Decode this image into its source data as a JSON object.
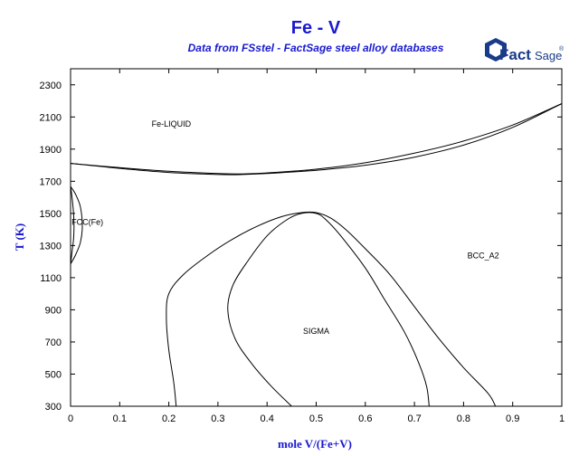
{
  "chart_data": {
    "type": "line",
    "title": "Fe - V",
    "subtitle": "Data from FSstel - FactSage steel alloy databases",
    "xlabel": "mole V/(Fe+V)",
    "ylabel": "T (K)",
    "xlim": [
      0,
      1
    ],
    "ylim": [
      300,
      2400
    ],
    "xticks": [
      "0",
      "0.1",
      "0.2",
      "0.3",
      "0.4",
      "0.5",
      "0.6",
      "0.7",
      "0.8",
      "0.9",
      "1"
    ],
    "xtick_values": [
      0,
      0.1,
      0.2,
      0.3,
      0.4,
      0.5,
      0.6,
      0.7,
      0.8,
      0.9,
      1
    ],
    "yticks": [
      "300",
      "500",
      "700",
      "900",
      "1100",
      "1300",
      "1500",
      "1700",
      "1900",
      "2100",
      "2300"
    ],
    "ytick_values": [
      300,
      500,
      700,
      900,
      1100,
      1300,
      1500,
      1700,
      1900,
      2100,
      2300
    ],
    "grid": false,
    "region_labels": [
      {
        "text": "Fe-LIQUID",
        "x": 0.165,
        "y": 2040
      },
      {
        "text": "FCC(Fe)",
        "x": 0.002,
        "y": 1430
      },
      {
        "text": "BCC_A2",
        "x": 0.84,
        "y": 1220
      },
      {
        "text": "SIGMA",
        "x": 0.5,
        "y": 750
      }
    ],
    "series": [
      {
        "values": [
          [
            0,
            1811
          ],
          [
            0.1,
            1785
          ],
          [
            0.2,
            1762
          ],
          [
            0.3,
            1748
          ],
          [
            0.35,
            1746
          ],
          [
            0.4,
            1752
          ],
          [
            0.5,
            1775
          ],
          [
            0.6,
            1815
          ],
          [
            0.7,
            1875
          ],
          [
            0.8,
            1950
          ],
          [
            0.9,
            2050
          ],
          [
            1,
            2183
          ]
        ]
      },
      {
        "values": [
          [
            0,
            1811
          ],
          [
            0.1,
            1780
          ],
          [
            0.2,
            1755
          ],
          [
            0.3,
            1742
          ],
          [
            0.35,
            1742
          ],
          [
            0.4,
            1748
          ],
          [
            0.5,
            1768
          ],
          [
            0.6,
            1800
          ],
          [
            0.7,
            1850
          ],
          [
            0.8,
            1925
          ],
          [
            0.9,
            2035
          ],
          [
            1,
            2183
          ]
        ]
      },
      {
        "values": [
          [
            0,
            1667
          ],
          [
            0.003,
            1600
          ],
          [
            0.006,
            1500
          ],
          [
            0.007,
            1420
          ],
          [
            0.006,
            1340
          ],
          [
            0.003,
            1260
          ],
          [
            0,
            1185
          ]
        ]
      },
      {
        "values": [
          [
            0,
            1667
          ],
          [
            0.01,
            1620
          ],
          [
            0.02,
            1540
          ],
          [
            0.024,
            1420
          ],
          [
            0.02,
            1320
          ],
          [
            0.01,
            1240
          ],
          [
            0,
            1185
          ]
        ]
      },
      {
        "values": [
          [
            0.215,
            300
          ],
          [
            0.21,
            450
          ],
          [
            0.2,
            650
          ],
          [
            0.195,
            850
          ],
          [
            0.2,
            1000
          ],
          [
            0.23,
            1120
          ],
          [
            0.28,
            1240
          ],
          [
            0.33,
            1340
          ],
          [
            0.38,
            1420
          ],
          [
            0.43,
            1480
          ],
          [
            0.47,
            1505
          ],
          [
            0.5,
            1505
          ],
          [
            0.53,
            1470
          ],
          [
            0.56,
            1400
          ],
          [
            0.6,
            1280
          ],
          [
            0.65,
            1120
          ],
          [
            0.7,
            920
          ],
          [
            0.75,
            720
          ],
          [
            0.8,
            540
          ],
          [
            0.85,
            380
          ],
          [
            0.865,
            300
          ]
        ]
      },
      {
        "values": [
          [
            0.45,
            300
          ],
          [
            0.41,
            420
          ],
          [
            0.37,
            560
          ],
          [
            0.335,
            720
          ],
          [
            0.32,
            900
          ],
          [
            0.33,
            1050
          ],
          [
            0.36,
            1200
          ],
          [
            0.4,
            1360
          ],
          [
            0.44,
            1460
          ],
          [
            0.47,
            1500
          ],
          [
            0.5,
            1500
          ],
          [
            0.52,
            1460
          ],
          [
            0.55,
            1360
          ],
          [
            0.6,
            1160
          ],
          [
            0.64,
            960
          ],
          [
            0.68,
            760
          ],
          [
            0.71,
            560
          ],
          [
            0.725,
            420
          ],
          [
            0.73,
            300
          ]
        ]
      }
    ]
  },
  "logo": {
    "fact": "Fact",
    "sage": "Sage",
    "mark": "®"
  }
}
